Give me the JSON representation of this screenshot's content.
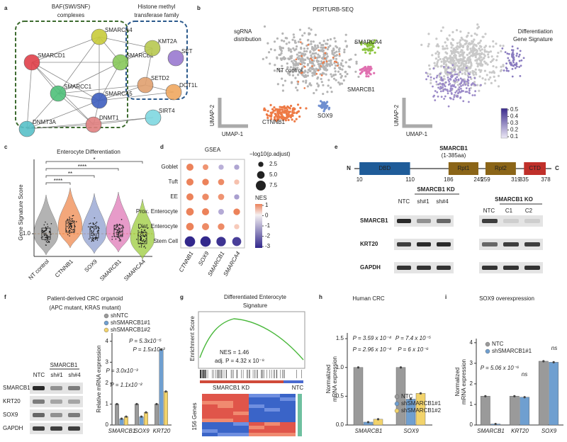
{
  "panels": {
    "a": {
      "label": "a",
      "group_baf": [
        "BAF(SWI/SNF)",
        "complexes"
      ],
      "group_hmt": [
        "Histone methyl",
        "transferase family"
      ],
      "nodes": [
        "SMARCA4",
        "SMARCD1",
        "SMARCB1",
        "SMARCC1",
        "SMARCA5",
        "KMT2A",
        "SET",
        "SETD2",
        "DOT1L",
        "DNMT3A",
        "DNMT1",
        "SIRT4"
      ]
    },
    "b": {
      "label": "b",
      "title": "PERTURB-SEQ",
      "left_caption": [
        "sgRNA",
        "distribution"
      ],
      "clusters": [
        "NT control",
        "SMARCA4",
        "SMARCB1",
        "SOX9",
        "CTNNB1"
      ],
      "right_caption": [
        "Differentiation",
        "Gene Signature"
      ],
      "umap_y": "UMAP-2",
      "umap_x": "UMAP-1",
      "colorbar_ticks": [
        0.5,
        0.4,
        0.3,
        0.2,
        0.1
      ]
    },
    "c": {
      "label": "c",
      "title": "Enterocyte Differentiation",
      "ylabel": "Gene Signature Score",
      "yticks": [
        {
          "value": 1,
          "label": "1.0"
        }
      ],
      "categories": [
        "NT control",
        "CTNNB1",
        "SOX9",
        "SMARCB1",
        "SMARCA4"
      ],
      "significance": [
        "*",
        "****",
        "**",
        "****"
      ]
    },
    "d": {
      "label": "d",
      "type": "dot",
      "title": "GSEA",
      "rows": [
        "Goblet",
        "Tuft",
        "EE",
        "Prox. Enterocyte",
        "Dist. Enterocyte",
        "Stem Cell"
      ],
      "columns": [
        "CTNNB1",
        "SOX9",
        "SMARCB1",
        "SMARCA4"
      ],
      "nes": [
        [
          1.2,
          0.8,
          -0.6,
          -0.8
        ],
        [
          1.1,
          1.0,
          0.9,
          0.3
        ],
        [
          1.0,
          0.9,
          0.8,
          -0.9
        ],
        [
          1.1,
          1.0,
          -0.7,
          1.0
        ],
        [
          1.0,
          0.9,
          0.9,
          0.2
        ],
        [
          -3.0,
          -3.2,
          -2.8,
          -2.6
        ]
      ],
      "neg_log10_padj": [
        [
          4.5,
          3.0,
          2.5,
          2.5
        ],
        [
          4.5,
          4.0,
          3.5,
          2.5
        ],
        [
          4.5,
          4.0,
          3.5,
          2.5
        ],
        [
          5.0,
          4.5,
          3.0,
          4.0
        ],
        [
          5.0,
          4.5,
          4.0,
          2.5
        ],
        [
          8.0,
          8.0,
          7.0,
          6.5
        ]
      ],
      "size_title": "−log10(p.adjust)",
      "size_ticks": [
        2.5,
        {
          "value": 5,
          "label": "5.0"
        },
        7.5
      ],
      "nes_title": "NES",
      "nes_ticks": [
        1,
        0,
        -1,
        -2,
        -3
      ]
    },
    "e": {
      "label": "e",
      "protein": "SMARCB1",
      "range": "(1-385aa)",
      "n": "N",
      "c": "C",
      "domains": [
        {
          "name": "DBD",
          "start": 10,
          "end": 110
        },
        {
          "name": "Rpt1",
          "start": 186,
          "end": 245
        },
        {
          "name": "Rpt2",
          "start": 259,
          "end": 319
        },
        {
          "name": "CTD",
          "start": 335,
          "end": 378
        }
      ],
      "kd_title": "SMARCB1 KD",
      "kd_lanes": [
        "NTC",
        "sh#1",
        "sh#4"
      ],
      "ko_title": "SMARCB1 KO",
      "ko_lanes": [
        "NTC",
        "C1",
        "C2"
      ],
      "rows": [
        "SMARCB1",
        "KRT20",
        "GAPDH"
      ]
    },
    "f": {
      "label": "f",
      "title": "Patient-derived CRC organoid",
      "subtitle": "(APC mutant, KRAS mutant)",
      "blot_header": "SMARCB1",
      "lanes": [
        "NTC",
        "sh#1",
        "sh#4"
      ],
      "blot_rows": [
        "SMARCB1",
        "KRT20",
        "SOX9",
        "GAPDH"
      ],
      "chart": {
        "type": "bar",
        "ylabel": "Relative mRNA expression",
        "categories": [
          "SMARCB1",
          "SOX9",
          "KRT20"
        ],
        "series": [
          {
            "name": "shNTC",
            "color": "#9a9a9a",
            "values": [
              1.0,
              1.0,
              1.0
            ]
          },
          {
            "name": "shSMARCB1#1",
            "color": "#6f9fd0",
            "values": [
              0.3,
              0.4,
              3.6
            ]
          },
          {
            "name": "shSMARCB1#2",
            "color": "#f2d36b",
            "values": [
              0.4,
              0.6,
              1.6
            ]
          }
        ],
        "ylim": [
          0,
          4.4
        ],
        "yticks": [
          0,
          1,
          2,
          3,
          4
        ],
        "annotations": [
          "P = 5.3x10⁻⁵",
          "P = 1.5x10⁻³",
          "P = 3.0x10⁻³",
          "P = 1.1x10⁻²"
        ]
      }
    },
    "g": {
      "label": "g",
      "title": [
        "Differentiated Enterocyte",
        "Signature"
      ],
      "ylabel": "Enrichment Score",
      "nes": "NES = 1.46",
      "padj": "adj. P = 4.32 x 10⁻⁸",
      "left_group": "SMARCB1 KD",
      "right_group": "NTC",
      "genes": "156 Genes"
    },
    "h": {
      "label": "h",
      "title": "Human CRC",
      "chart": {
        "type": "bar",
        "ylabel": [
          "Normalized",
          "mRNA expression"
        ],
        "categories": [
          "SMARCB1",
          "SOX9"
        ],
        "series": [
          {
            "name": "NTC",
            "color": "#9a9a9a",
            "values": [
              1.0,
              1.0
            ]
          },
          {
            "name": "shSMARCB1#1",
            "color": "#6f9fd0",
            "values": [
              0.05,
              0.45
            ]
          },
          {
            "name": "shSMARCB1#2",
            "color": "#f2d36b",
            "values": [
              0.1,
              0.55
            ]
          }
        ],
        "ylim": [
          0,
          1.6
        ],
        "yticks": [
          {
            "value": 0,
            "label": "0.0"
          },
          {
            "value": 0.5,
            "label": "0.5"
          },
          {
            "value": 1,
            "label": "1.0"
          },
          {
            "value": 1.5,
            "label": "1.5"
          }
        ],
        "annotations": [
          "P = 3.59 x 10⁻⁴",
          "P = 2.96 x 10⁻⁴",
          "P = 7.4 x 10⁻⁵",
          "P = 6 x 10⁻⁶"
        ]
      }
    },
    "i": {
      "label": "i",
      "title": "SOX9 overexpression",
      "chart": {
        "type": "bar",
        "ylabel": [
          "Normalized",
          "mRNA expression"
        ],
        "categories": [
          "SMARCB1",
          "KRT20",
          "SOX9"
        ],
        "series": [
          {
            "name": "NTC",
            "color": "#9a9a9a",
            "values": [
              1.4,
              1.4,
              3.1
            ]
          },
          {
            "name": "shSMARCB1#1",
            "color": "#6f9fd0",
            "values": [
              0.05,
              1.35,
              3.05
            ]
          }
        ],
        "ylim": [
          0,
          4.2
        ],
        "yticks": [
          0,
          1,
          2,
          3,
          4
        ],
        "annotations": [
          "P = 5.06 x 10⁻⁶",
          "ns",
          "ns"
        ]
      }
    }
  }
}
